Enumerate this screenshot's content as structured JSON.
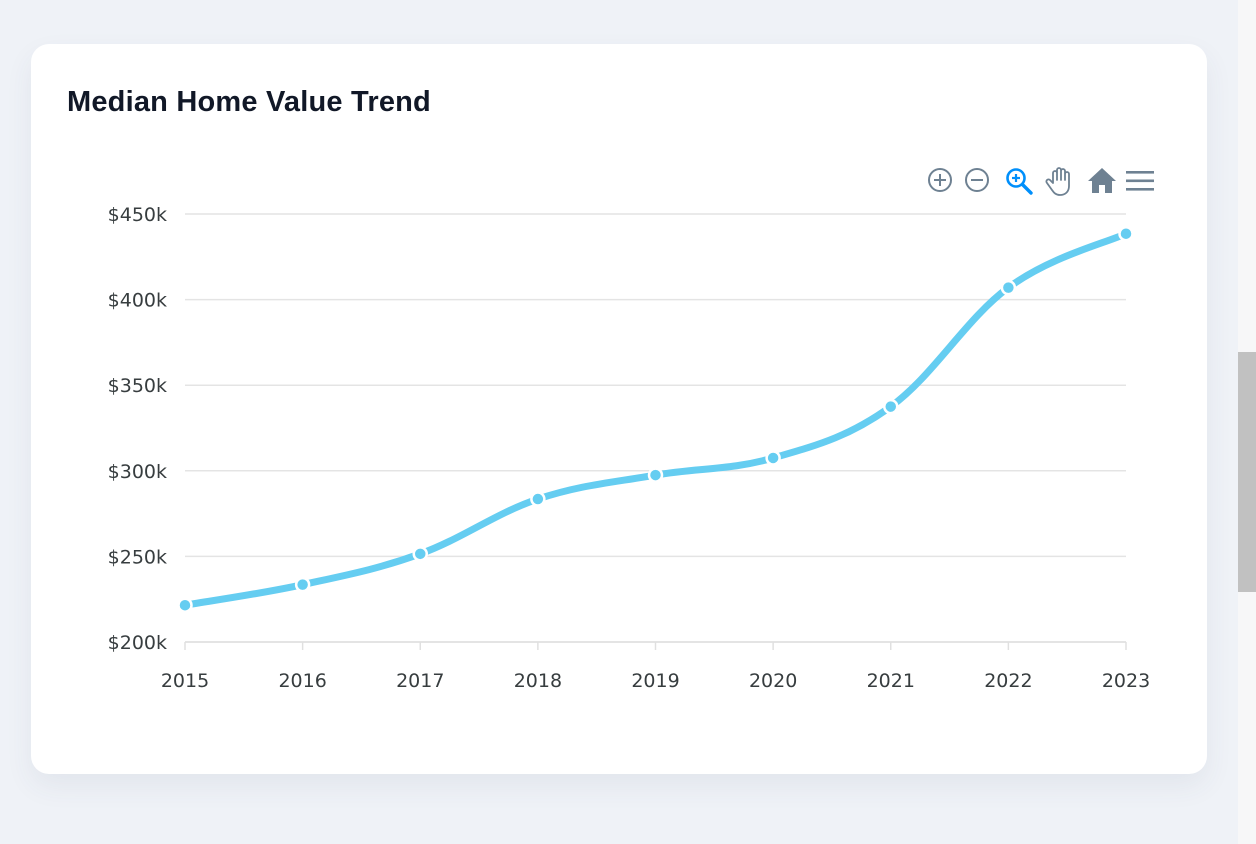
{
  "card": {
    "title": "Median Home Value Trend"
  },
  "toolbar": {
    "items": [
      {
        "name": "zoom-in-icon",
        "active": false
      },
      {
        "name": "zoom-out-icon",
        "active": false
      },
      {
        "name": "selection-zoom-icon",
        "active": true
      },
      {
        "name": "pan-hand-icon",
        "active": false
      },
      {
        "name": "reset-home-icon",
        "active": false
      },
      {
        "name": "menu-icon",
        "active": false
      }
    ],
    "colors": {
      "default": "#6e8192",
      "active": "#008ffb"
    }
  },
  "chart_data": {
    "type": "line",
    "title": "Median Home Value Trend",
    "xlabel": "",
    "ylabel": "",
    "categories": [
      "2015",
      "2016",
      "2017",
      "2018",
      "2019",
      "2020",
      "2021",
      "2022",
      "2023"
    ],
    "series": [
      {
        "values": [
          221500,
          233500,
          251500,
          283500,
          297500,
          307500,
          337500,
          407000,
          438500
        ],
        "color": "#65cdf1"
      }
    ],
    "ylim": [
      200000,
      450000
    ],
    "y_ticks": [
      "$200k",
      "$250k",
      "$300k",
      "$350k",
      "$400k",
      "$450k"
    ],
    "curve": "smooth",
    "markers": true,
    "grid": true,
    "grid_color": "#e4e4e4",
    "legend": "none"
  }
}
